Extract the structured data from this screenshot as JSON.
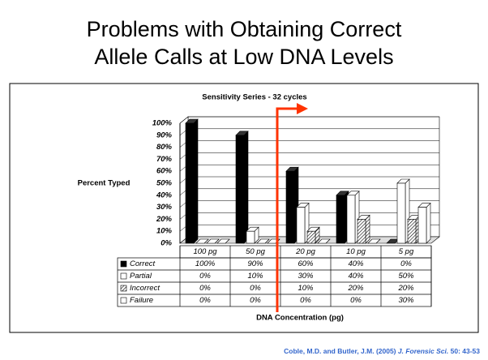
{
  "slide_title": [
    "Problems with Obtaining Correct",
    "Allele Calls at Low DNA Levels"
  ],
  "chart_data": {
    "type": "bar3d",
    "title": "Sensitivity Series - 32 cycles",
    "y_label": "Percent Typed",
    "x_label": "DNA Concentration (pg)",
    "categories": [
      "100 pg",
      "50 pg",
      "20 pg",
      "10 pg",
      "5 pg"
    ],
    "series": [
      {
        "name": "Correct",
        "color": "#000000",
        "values": [
          100,
          90,
          60,
          40,
          0
        ],
        "value_labels": [
          "100%",
          "90%",
          "60%",
          "40%",
          "0%"
        ]
      },
      {
        "name": "Partial",
        "color": "#ffffff",
        "values": [
          0,
          10,
          30,
          40,
          50
        ],
        "value_labels": [
          "0%",
          "10%",
          "30%",
          "40%",
          "50%"
        ]
      },
      {
        "name": "Incorrect",
        "color": "#ffffff",
        "pattern": "hatch",
        "values": [
          0,
          0,
          10,
          20,
          20
        ],
        "value_labels": [
          "0%",
          "0%",
          "10%",
          "20%",
          "20%"
        ]
      },
      {
        "name": "Failure",
        "color": "#ffffff",
        "values": [
          0,
          0,
          0,
          0,
          30
        ],
        "value_labels": [
          "0%",
          "0%",
          "0%",
          "0%",
          "30%"
        ]
      }
    ],
    "ylim": [
      0,
      100
    ],
    "yticks": [
      {
        "value": 0,
        "label": "0%"
      },
      {
        "value": 10,
        "label": "10%"
      },
      {
        "value": 20,
        "label": "20%"
      },
      {
        "value": 30,
        "label": "30%"
      },
      {
        "value": 40,
        "label": "40%"
      },
      {
        "value": 50,
        "label": "50%"
      },
      {
        "value": 60,
        "label": "60%"
      },
      {
        "value": 70,
        "label": "70%"
      },
      {
        "value": 80,
        "label": "80%"
      },
      {
        "value": 90,
        "label": "90%"
      },
      {
        "value": 100,
        "label": "100%"
      }
    ],
    "grid": true
  },
  "citation": {
    "authors": "Coble, M.D. and Butler, J.M. (2005) ",
    "journal": "J. Forensic Sci.",
    "ref": " 50: 43-53"
  }
}
